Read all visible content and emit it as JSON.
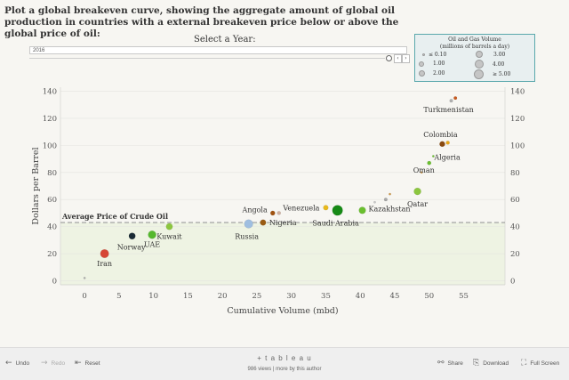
{
  "title": "Plot a global breakeven curve, showing the aggregate amount of global oil production in countries with a external breakeven price below or above the global price of oil:",
  "year_control": {
    "label": "Select a Year:",
    "value": "2016"
  },
  "legend": {
    "title_line1": "Oil and Gas Volume",
    "title_line2": "(millions of barrels a day)",
    "items": [
      "≤ 0.10",
      "1.00",
      "2.00",
      "3.00",
      "4.00",
      "≥ 5.00"
    ]
  },
  "chart_data": {
    "type": "scatter",
    "xlabel": "Cumulative Volume (mbd)",
    "ylabel": "Dollars per Barrel",
    "xlim": [
      -3.5,
      61
    ],
    "ylim": [
      -3,
      143
    ],
    "xticks": [
      0,
      5,
      10,
      15,
      20,
      25,
      30,
      35,
      40,
      45,
      50,
      55
    ],
    "yticks": [
      0,
      20,
      40,
      60,
      80,
      100,
      120,
      140
    ],
    "reference_line": {
      "label": "Average Price of Crude Oil",
      "value": 43
    },
    "points": [
      {
        "x": 0,
        "y": 2,
        "size": 0.05,
        "color": "#b0b0b0",
        "label": ""
      },
      {
        "x": 2.9,
        "y": 20,
        "size": 3.4,
        "color": "#d64535",
        "label": "Iran"
      },
      {
        "x": 6.9,
        "y": 33,
        "size": 2.0,
        "color": "#1a2b35",
        "label": "Norway"
      },
      {
        "x": 9.8,
        "y": 34,
        "size": 3.0,
        "color": "#55b82e",
        "label": "UAE"
      },
      {
        "x": 12.3,
        "y": 40,
        "size": 2.0,
        "color": "#8cc63f",
        "label": "Kuwait"
      },
      {
        "x": 23.8,
        "y": 42,
        "size": 3.5,
        "color": "#9fbee0",
        "label": "Russia"
      },
      {
        "x": 25.9,
        "y": 43,
        "size": 1.6,
        "color": "#9a5b12",
        "label": "Nigeria"
      },
      {
        "x": 27.3,
        "y": 50,
        "size": 1.0,
        "color": "#a0520f",
        "label": "Angola"
      },
      {
        "x": 28.2,
        "y": 50,
        "size": 0.6,
        "color": "#d0b0a0",
        "label": ""
      },
      {
        "x": 35.0,
        "y": 54,
        "size": 1.2,
        "color": "#e8b91c",
        "label": "Venezuela"
      },
      {
        "x": 36.7,
        "y": 52,
        "size": 5.0,
        "color": "#168a16",
        "label": "Saudi Arabia"
      },
      {
        "x": 40.3,
        "y": 52,
        "size": 2.2,
        "color": "#6abf2f",
        "label": "Kazakhstan"
      },
      {
        "x": 42.1,
        "y": 58,
        "size": 0.1,
        "color": "#c8c8c8",
        "label": ""
      },
      {
        "x": 43.7,
        "y": 60,
        "size": 0.5,
        "color": "#a8a8a8",
        "label": ""
      },
      {
        "x": 44.3,
        "y": 64,
        "size": 0.1,
        "color": "#d09a4a",
        "label": ""
      },
      {
        "x": 48.3,
        "y": 66,
        "size": 2.4,
        "color": "#8cc63f",
        "label": "Qatar"
      },
      {
        "x": 48.9,
        "y": 80,
        "size": 0.1,
        "color": "#d09a4a",
        "label": ""
      },
      {
        "x": 50.0,
        "y": 87,
        "size": 0.7,
        "color": "#6abf2f",
        "label": "Oman"
      },
      {
        "x": 50.6,
        "y": 92,
        "size": 0.1,
        "color": "#6abf2f",
        "label": "Algeria"
      },
      {
        "x": 51.9,
        "y": 101,
        "size": 1.4,
        "color": "#8a4a10",
        "label": "Colombia"
      },
      {
        "x": 52.7,
        "y": 102,
        "size": 0.6,
        "color": "#e8a81c",
        "label": ""
      },
      {
        "x": 53.2,
        "y": 133,
        "size": 0.5,
        "color": "#b0b0b0",
        "label": "Turkmenistan"
      },
      {
        "x": 53.8,
        "y": 135,
        "size": 0.5,
        "color": "#c85a20",
        "label": ""
      }
    ]
  },
  "toolbar": {
    "undo": "Undo",
    "redo": "Redo",
    "reset": "Reset",
    "share": "Share",
    "download": "Download",
    "full_screen": "Full Screen",
    "brand": "+ t a b l e a u",
    "views": "986 views",
    "more": "| more by this author"
  }
}
